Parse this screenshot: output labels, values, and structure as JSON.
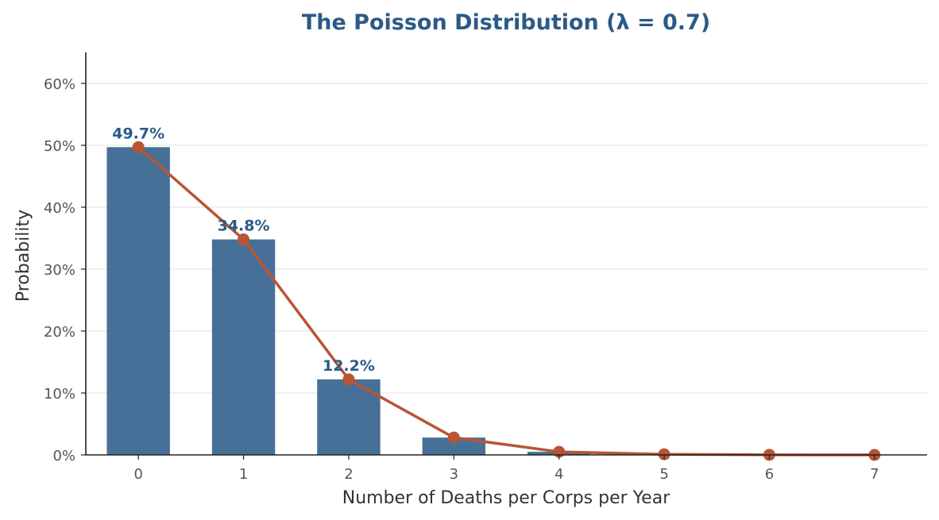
{
  "chart_data": {
    "type": "bar",
    "title": "The Poisson Distribution (λ = 0.7)",
    "xlabel": "Number of Deaths per Corps per Year",
    "ylabel": "Probability",
    "categories": [
      "0",
      "1",
      "2",
      "3",
      "4",
      "5",
      "6",
      "7"
    ],
    "series": [
      {
        "type": "bar",
        "values": [
          0.497,
          0.348,
          0.122,
          0.028,
          0.005,
          0.001,
          0.0001,
          1e-05
        ]
      },
      {
        "type": "line",
        "values": [
          0.497,
          0.348,
          0.122,
          0.028,
          0.005,
          0.001,
          0.0001,
          1e-05
        ]
      }
    ],
    "data_labels": [
      {
        "index": 0,
        "text": "49.7%"
      },
      {
        "index": 1,
        "text": "34.8%"
      },
      {
        "index": 2,
        "text": "12.2%"
      }
    ],
    "ylim": [
      0,
      0.65
    ],
    "yticks": [
      0,
      0.1,
      0.2,
      0.3,
      0.4,
      0.5,
      0.6
    ],
    "ytick_labels": [
      "0%",
      "10%",
      "20%",
      "30%",
      "40%",
      "50%",
      "60%"
    ],
    "xlim": [
      -0.5,
      7.5
    ],
    "grid": "y",
    "legend": "none",
    "colors": {
      "bar": "#2e5c8a",
      "line": "#b85535",
      "title": "#2b5a86",
      "data_label": "#2b5a86",
      "grid": "#e6e6e6",
      "axis": "#222222"
    }
  }
}
